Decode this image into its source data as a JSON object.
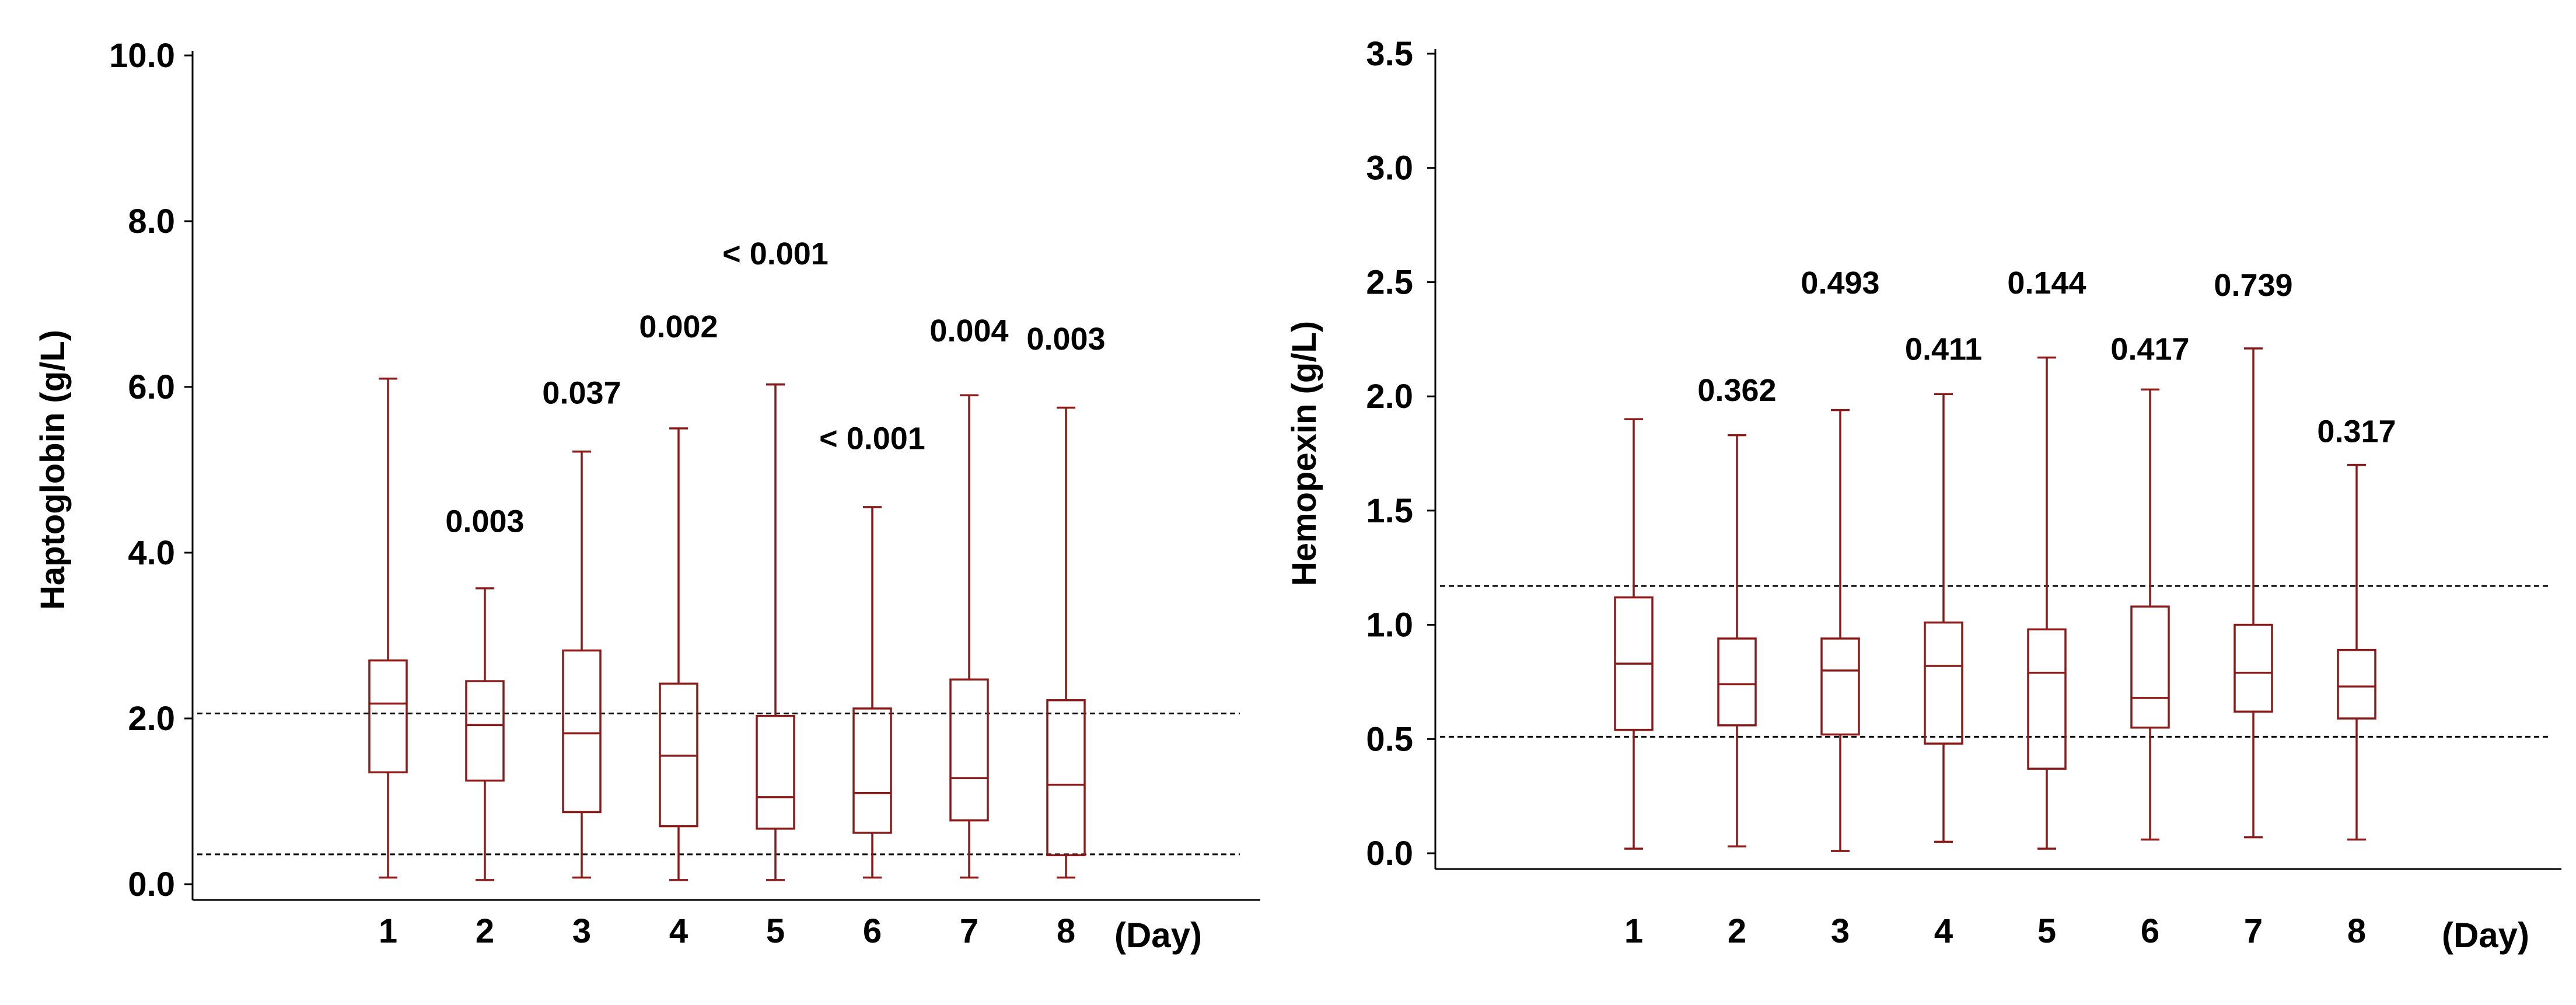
{
  "colors": {
    "box": "#8B1A1A",
    "axis": "#000000",
    "refline": "#000000"
  },
  "chart_data": [
    {
      "type": "box",
      "ylabel": "Haptoglobin (g/L)",
      "xunit": "(Day)",
      "ylim": [
        0,
        10
      ],
      "yticks": [
        0,
        2,
        4,
        6,
        8,
        10
      ],
      "ytick_labels": [
        "0.0",
        "2.0",
        "4.0",
        "6.0",
        "8.0",
        "10.0"
      ],
      "categories": [
        "1",
        "2",
        "3",
        "4",
        "5",
        "6",
        "7",
        "8"
      ],
      "boxes": [
        {
          "day": "1",
          "min": 0.08,
          "q1": 1.35,
          "median": 2.18,
          "q3": 2.7,
          "max": 6.1,
          "p_value": ""
        },
        {
          "day": "2",
          "min": 0.05,
          "q1": 1.25,
          "median": 1.92,
          "q3": 2.45,
          "max": 3.57,
          "p_value": "0.003"
        },
        {
          "day": "3",
          "min": 0.08,
          "q1": 0.87,
          "median": 1.82,
          "q3": 2.82,
          "max": 5.22,
          "p_value": "0.037"
        },
        {
          "day": "4",
          "min": 0.05,
          "q1": 0.7,
          "median": 1.55,
          "q3": 2.42,
          "max": 5.5,
          "p_value": "0.002"
        },
        {
          "day": "5",
          "min": 0.05,
          "q1": 0.67,
          "median": 1.05,
          "q3": 2.03,
          "max": 6.03,
          "p_value": "< 0.001"
        },
        {
          "day": "6",
          "min": 0.08,
          "q1": 0.62,
          "median": 1.1,
          "q3": 2.12,
          "max": 4.55,
          "p_value": "< 0.001"
        },
        {
          "day": "7",
          "min": 0.08,
          "q1": 0.77,
          "median": 1.28,
          "q3": 2.47,
          "max": 5.9,
          "p_value": "0.004"
        },
        {
          "day": "8",
          "min": 0.08,
          "q1": 0.35,
          "median": 1.2,
          "q3": 2.22,
          "max": 5.75,
          "p_value": "0.003"
        }
      ],
      "p_label_y": [
        null,
        4.25,
        5.8,
        6.6,
        7.48,
        5.25,
        6.55,
        6.45
      ],
      "reference_lines": [
        0.36,
        2.06
      ]
    },
    {
      "type": "box",
      "ylabel": "Hemopexin (g/L)",
      "xunit": "(Day)",
      "ylim": [
        0,
        3.5
      ],
      "yticks": [
        0,
        0.5,
        1,
        1.5,
        2,
        2.5,
        3,
        3.5
      ],
      "ytick_labels": [
        "0.0",
        "0.5",
        "1.0",
        "1.5",
        "2.0",
        "2.5",
        "3.0",
        "3.5"
      ],
      "categories": [
        "1",
        "2",
        "3",
        "4",
        "5",
        "6",
        "7",
        "8"
      ],
      "boxes": [
        {
          "day": "1",
          "min": 0.02,
          "q1": 0.54,
          "median": 0.83,
          "q3": 1.12,
          "max": 1.9,
          "p_value": ""
        },
        {
          "day": "2",
          "min": 0.03,
          "q1": 0.56,
          "median": 0.74,
          "q3": 0.94,
          "max": 1.83,
          "p_value": "0.362"
        },
        {
          "day": "3",
          "min": 0.01,
          "q1": 0.52,
          "median": 0.8,
          "q3": 0.94,
          "max": 1.94,
          "p_value": "0.493"
        },
        {
          "day": "4",
          "min": 0.05,
          "q1": 0.48,
          "median": 0.82,
          "q3": 1.01,
          "max": 2.01,
          "p_value": "0.411"
        },
        {
          "day": "5",
          "min": 0.02,
          "q1": 0.37,
          "median": 0.79,
          "q3": 0.98,
          "max": 2.17,
          "p_value": "0.144"
        },
        {
          "day": "6",
          "min": 0.06,
          "q1": 0.55,
          "median": 0.68,
          "q3": 1.08,
          "max": 2.03,
          "p_value": "0.417"
        },
        {
          "day": "7",
          "min": 0.07,
          "q1": 0.62,
          "median": 0.79,
          "q3": 1.0,
          "max": 2.21,
          "p_value": "0.739"
        },
        {
          "day": "8",
          "min": 0.06,
          "q1": 0.59,
          "median": 0.73,
          "q3": 0.89,
          "max": 1.7,
          "p_value": "0.317"
        }
      ],
      "p_label_y": [
        null,
        1.98,
        2.45,
        2.16,
        2.45,
        2.16,
        2.44,
        1.8
      ],
      "reference_lines": [
        0.51,
        1.17
      ]
    }
  ]
}
